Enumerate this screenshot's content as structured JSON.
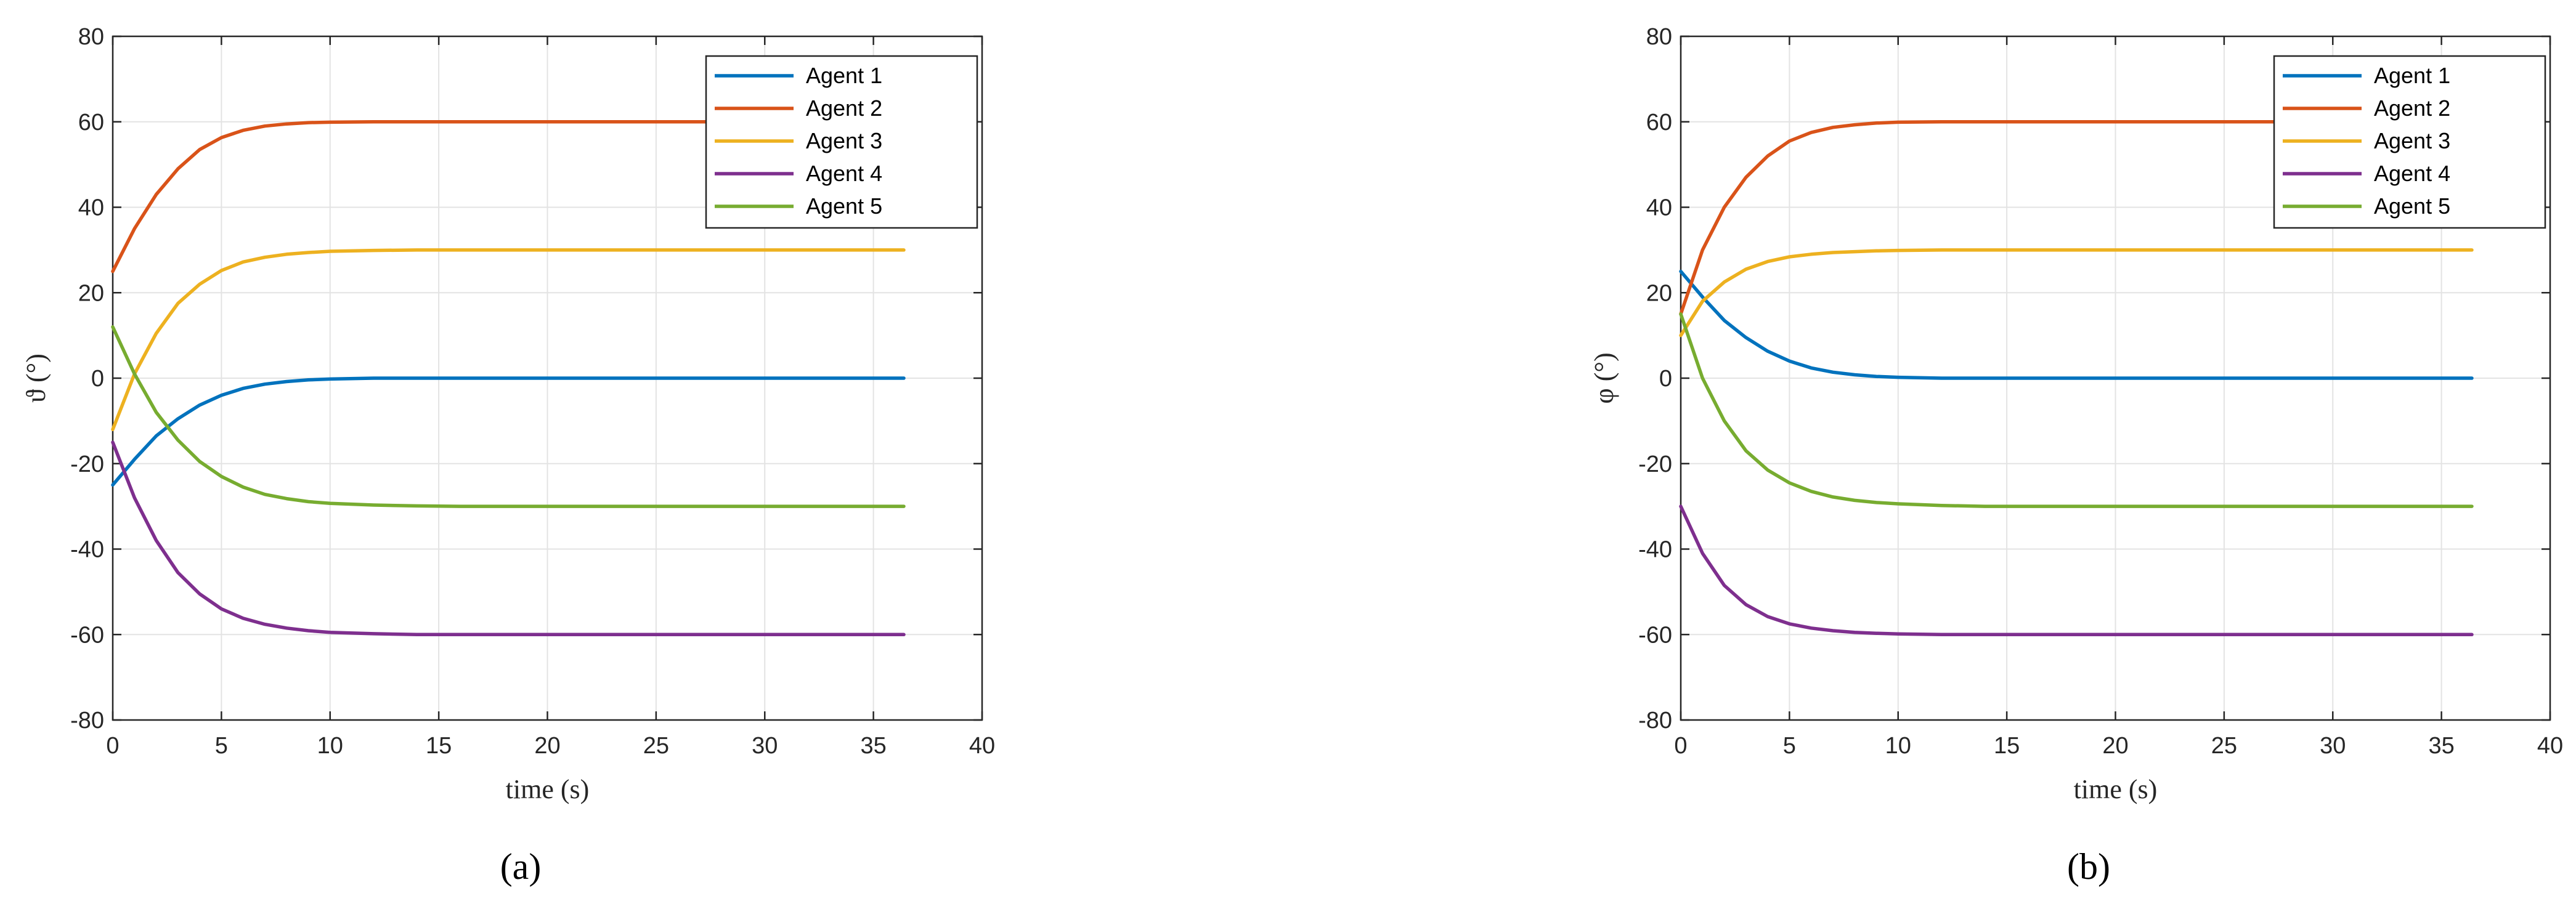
{
  "chart_data": [
    {
      "type": "line",
      "panel_label": "(a)",
      "xlabel": "time (s)",
      "ylabel": "ϑ (°)",
      "xlim": [
        0,
        40
      ],
      "ylim": [
        -80,
        80
      ],
      "x_ticks": [
        "0",
        "5",
        "10",
        "15",
        "20",
        "25",
        "30",
        "35",
        "40"
      ],
      "y_ticks": [
        "80",
        "60",
        "40",
        "20",
        "0",
        "-20",
        "-40",
        "-60",
        "-80"
      ],
      "grid": true,
      "legend_position": "top-right",
      "x": [
        0,
        1,
        2,
        3,
        4,
        5,
        6,
        7,
        8,
        9,
        10,
        12,
        14,
        16,
        20,
        25,
        30,
        36.4
      ],
      "series": [
        {
          "name": "Agent 1",
          "color": "#0072BD",
          "values": [
            -25,
            -19,
            -13.5,
            -9.5,
            -6.3,
            -4,
            -2.4,
            -1.4,
            -0.8,
            -0.4,
            -0.2,
            0,
            0,
            0,
            0,
            0,
            0,
            0
          ]
        },
        {
          "name": "Agent 2",
          "color": "#D95319",
          "values": [
            25,
            35,
            43,
            49,
            53.5,
            56.3,
            58,
            59,
            59.5,
            59.8,
            59.9,
            60,
            60,
            60,
            60,
            60,
            60,
            60
          ]
        },
        {
          "name": "Agent 3",
          "color": "#EDB120",
          "values": [
            -12,
            1,
            10.5,
            17.5,
            22,
            25.2,
            27.2,
            28.3,
            29,
            29.4,
            29.7,
            29.9,
            30,
            30,
            30,
            30,
            30,
            30
          ]
        },
        {
          "name": "Agent 4",
          "color": "#7E2F8E",
          "values": [
            -15,
            -28,
            -38,
            -45.5,
            -50.5,
            -54,
            -56.2,
            -57.6,
            -58.5,
            -59.1,
            -59.5,
            -59.8,
            -60,
            -60,
            -60,
            -60,
            -60,
            -60
          ]
        },
        {
          "name": "Agent 5",
          "color": "#77AC30",
          "values": [
            12,
            1,
            -8,
            -14.5,
            -19.5,
            -23,
            -25.5,
            -27.2,
            -28.2,
            -28.9,
            -29.3,
            -29.7,
            -29.9,
            -30,
            -30,
            -30,
            -30,
            -30
          ]
        }
      ]
    },
    {
      "type": "line",
      "panel_label": "(b)",
      "xlabel": "time (s)",
      "ylabel": "φ (°)",
      "xlim": [
        0,
        40
      ],
      "ylim": [
        -80,
        80
      ],
      "x_ticks": [
        "0",
        "5",
        "10",
        "15",
        "20",
        "25",
        "30",
        "35",
        "40"
      ],
      "y_ticks": [
        "80",
        "60",
        "40",
        "20",
        "0",
        "-20",
        "-40",
        "-60",
        "-80"
      ],
      "grid": true,
      "legend_position": "top-right",
      "x": [
        0,
        1,
        2,
        3,
        4,
        5,
        6,
        7,
        8,
        9,
        10,
        12,
        14,
        16,
        20,
        25,
        30,
        36.4
      ],
      "series": [
        {
          "name": "Agent 1",
          "color": "#0072BD",
          "values": [
            25,
            19,
            13.5,
            9.5,
            6.3,
            4,
            2.4,
            1.4,
            0.8,
            0.4,
            0.2,
            0,
            0,
            0,
            0,
            0,
            0,
            0
          ]
        },
        {
          "name": "Agent 2",
          "color": "#D95319",
          "values": [
            15,
            30,
            40,
            47,
            52,
            55.5,
            57.5,
            58.7,
            59.3,
            59.7,
            59.9,
            60,
            60,
            60,
            60,
            60,
            60,
            60
          ]
        },
        {
          "name": "Agent 3",
          "color": "#EDB120",
          "values": [
            10,
            18,
            22.5,
            25.5,
            27.3,
            28.4,
            29,
            29.4,
            29.6,
            29.8,
            29.9,
            30,
            30,
            30,
            30,
            30,
            30,
            30
          ]
        },
        {
          "name": "Agent 4",
          "color": "#7E2F8E",
          "values": [
            -30,
            -41,
            -48.5,
            -53,
            -55.8,
            -57.5,
            -58.5,
            -59.1,
            -59.5,
            -59.7,
            -59.85,
            -60,
            -60,
            -60,
            -60,
            -60,
            -60,
            -60
          ]
        },
        {
          "name": "Agent 5",
          "color": "#77AC30",
          "values": [
            15,
            0,
            -10,
            -17,
            -21.5,
            -24.5,
            -26.5,
            -27.8,
            -28.6,
            -29.1,
            -29.4,
            -29.8,
            -30,
            -30,
            -30,
            -30,
            -30,
            -30
          ]
        }
      ]
    }
  ]
}
